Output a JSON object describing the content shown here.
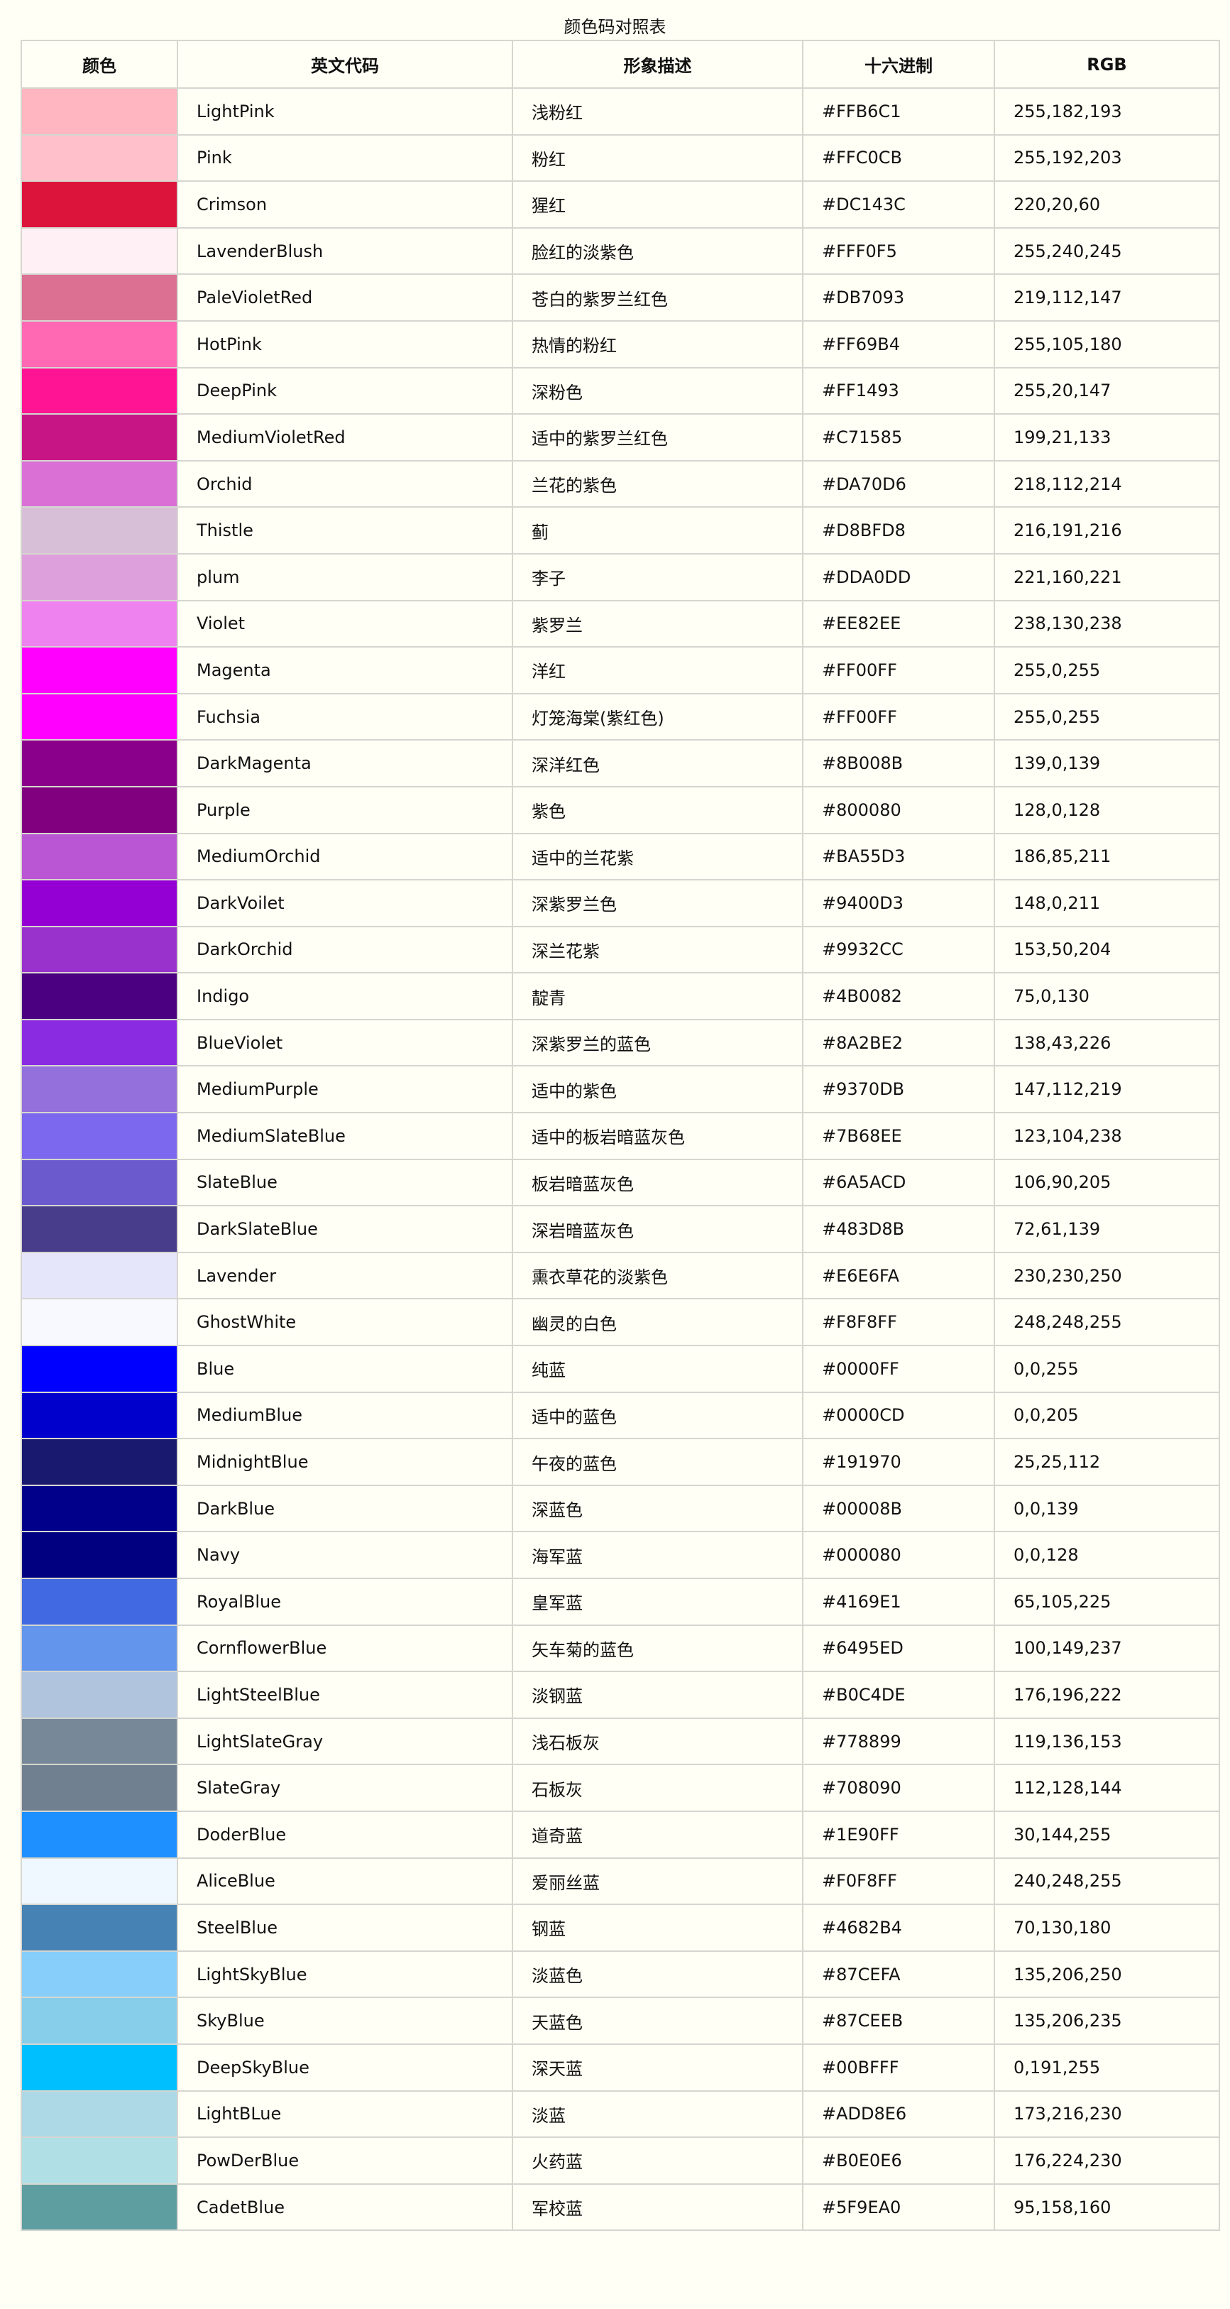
{
  "caption": "颜色码对照表",
  "headers": {
    "swatch": "颜色",
    "name": "英文代码",
    "desc": "形象描述",
    "hex": "十六进制",
    "rgb": "RGB"
  },
  "rows": [
    {
      "name": "LightPink",
      "desc": "浅粉红",
      "hex": "#FFB6C1",
      "rgb": "255,182,193"
    },
    {
      "name": "Pink",
      "desc": "粉红",
      "hex": "#FFC0CB",
      "rgb": "255,192,203"
    },
    {
      "name": "Crimson",
      "desc": "猩红",
      "hex": "#DC143C",
      "rgb": "220,20,60"
    },
    {
      "name": "LavenderBlush",
      "desc": "脸红的淡紫色",
      "hex": "#FFF0F5",
      "rgb": "255,240,245"
    },
    {
      "name": "PaleVioletRed",
      "desc": "苍白的紫罗兰红色",
      "hex": "#DB7093",
      "rgb": "219,112,147"
    },
    {
      "name": "HotPink",
      "desc": "热情的粉红",
      "hex": "#FF69B4",
      "rgb": "255,105,180"
    },
    {
      "name": "DeepPink",
      "desc": "深粉色",
      "hex": "#FF1493",
      "rgb": "255,20,147"
    },
    {
      "name": "MediumVioletRed",
      "desc": "适中的紫罗兰红色",
      "hex": "#C71585",
      "rgb": "199,21,133"
    },
    {
      "name": "Orchid",
      "desc": "兰花的紫色",
      "hex": "#DA70D6",
      "rgb": "218,112,214"
    },
    {
      "name": "Thistle",
      "desc": "蓟",
      "hex": "#D8BFD8",
      "rgb": "216,191,216"
    },
    {
      "name": "plum",
      "desc": "李子",
      "hex": "#DDA0DD",
      "rgb": "221,160,221"
    },
    {
      "name": "Violet",
      "desc": "紫罗兰",
      "hex": "#EE82EE",
      "rgb": "238,130,238"
    },
    {
      "name": "Magenta",
      "desc": "洋红",
      "hex": "#FF00FF",
      "rgb": "255,0,255"
    },
    {
      "name": "Fuchsia",
      "desc": "灯笼海棠(紫红色)",
      "hex": "#FF00FF",
      "rgb": "255,0,255"
    },
    {
      "name": "DarkMagenta",
      "desc": "深洋红色",
      "hex": "#8B008B",
      "rgb": "139,0,139"
    },
    {
      "name": "Purple",
      "desc": "紫色",
      "hex": "#800080",
      "rgb": "128,0,128"
    },
    {
      "name": "MediumOrchid",
      "desc": "适中的兰花紫",
      "hex": "#BA55D3",
      "rgb": "186,85,211"
    },
    {
      "name": "DarkVoilet",
      "desc": "深紫罗兰色",
      "hex": "#9400D3",
      "rgb": "148,0,211"
    },
    {
      "name": "DarkOrchid",
      "desc": "深兰花紫",
      "hex": "#9932CC",
      "rgb": "153,50,204"
    },
    {
      "name": "Indigo",
      "desc": "靛青",
      "hex": "#4B0082",
      "rgb": "75,0,130"
    },
    {
      "name": "BlueViolet",
      "desc": "深紫罗兰的蓝色",
      "hex": "#8A2BE2",
      "rgb": "138,43,226"
    },
    {
      "name": "MediumPurple",
      "desc": "适中的紫色",
      "hex": "#9370DB",
      "rgb": "147,112,219"
    },
    {
      "name": "MediumSlateBlue",
      "desc": "适中的板岩暗蓝灰色",
      "hex": "#7B68EE",
      "rgb": "123,104,238"
    },
    {
      "name": "SlateBlue",
      "desc": "板岩暗蓝灰色",
      "hex": "#6A5ACD",
      "rgb": "106,90,205"
    },
    {
      "name": "DarkSlateBlue",
      "desc": "深岩暗蓝灰色",
      "hex": "#483D8B",
      "rgb": "72,61,139"
    },
    {
      "name": "Lavender",
      "desc": "熏衣草花的淡紫色",
      "hex": "#E6E6FA",
      "rgb": "230,230,250"
    },
    {
      "name": "GhostWhite",
      "desc": "幽灵的白色",
      "hex": "#F8F8FF",
      "rgb": "248,248,255"
    },
    {
      "name": "Blue",
      "desc": "纯蓝",
      "hex": "#0000FF",
      "rgb": "0,0,255"
    },
    {
      "name": "MediumBlue",
      "desc": "适中的蓝色",
      "hex": "#0000CD",
      "rgb": "0,0,205"
    },
    {
      "name": "MidnightBlue",
      "desc": "午夜的蓝色",
      "hex": "#191970",
      "rgb": "25,25,112"
    },
    {
      "name": "DarkBlue",
      "desc": "深蓝色",
      "hex": "#00008B",
      "rgb": "0,0,139"
    },
    {
      "name": "Navy",
      "desc": "海军蓝",
      "hex": "#000080",
      "rgb": "0,0,128"
    },
    {
      "name": "RoyalBlue",
      "desc": "皇军蓝",
      "hex": "#4169E1",
      "rgb": "65,105,225"
    },
    {
      "name": "CornflowerBlue",
      "desc": "矢车菊的蓝色",
      "hex": "#6495ED",
      "rgb": "100,149,237"
    },
    {
      "name": "LightSteelBlue",
      "desc": "淡钢蓝",
      "hex": "#B0C4DE",
      "rgb": "176,196,222"
    },
    {
      "name": "LightSlateGray",
      "desc": "浅石板灰",
      "hex": "#778899",
      "rgb": "119,136,153"
    },
    {
      "name": "SlateGray",
      "desc": "石板灰",
      "hex": "#708090",
      "rgb": "112,128,144"
    },
    {
      "name": "DoderBlue",
      "desc": "道奇蓝",
      "hex": "#1E90FF",
      "rgb": "30,144,255"
    },
    {
      "name": "AliceBlue",
      "desc": "爱丽丝蓝",
      "hex": "#F0F8FF",
      "rgb": "240,248,255"
    },
    {
      "name": "SteelBlue",
      "desc": "钢蓝",
      "hex": "#4682B4",
      "rgb": "70,130,180"
    },
    {
      "name": "LightSkyBlue",
      "desc": "淡蓝色",
      "hex": "#87CEFA",
      "rgb": "135,206,250"
    },
    {
      "name": "SkyBlue",
      "desc": "天蓝色",
      "hex": "#87CEEB",
      "rgb": "135,206,235"
    },
    {
      "name": "DeepSkyBlue",
      "desc": "深天蓝",
      "hex": "#00BFFF",
      "rgb": "0,191,255"
    },
    {
      "name": "LightBLue",
      "desc": "淡蓝",
      "hex": "#ADD8E6",
      "rgb": "173,216,230"
    },
    {
      "name": "PowDerBlue",
      "desc": "火药蓝",
      "hex": "#B0E0E6",
      "rgb": "176,224,230"
    },
    {
      "name": "CadetBlue",
      "desc": "军校蓝",
      "hex": "#5F9EA0",
      "rgb": "95,158,160"
    }
  ]
}
